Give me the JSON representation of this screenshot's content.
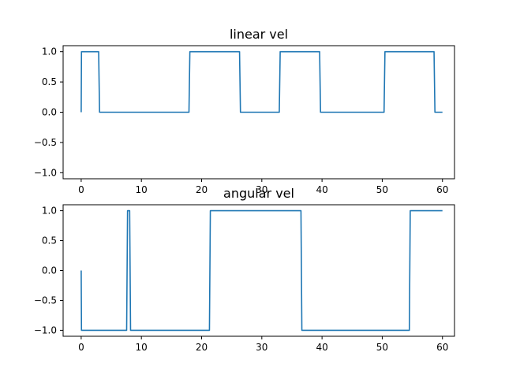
{
  "chart_data": [
    {
      "type": "line",
      "title": "linear vel",
      "xlabel": "",
      "ylabel": "",
      "xlim": [
        -3,
        62
      ],
      "ylim": [
        -1.1,
        1.1
      ],
      "xticks": [
        0,
        10,
        20,
        30,
        40,
        50,
        60
      ],
      "yticks": [
        -1.0,
        -0.5,
        0.0,
        0.5,
        1.0
      ],
      "xtick_labels": [
        "0",
        "10",
        "20",
        "30",
        "40",
        "50",
        "60"
      ],
      "ytick_labels": [
        "−1.0",
        "−0.5",
        "0.0",
        "0.5",
        "1.0"
      ],
      "grid": false,
      "color": "#1f77b4",
      "series": [
        {
          "x": [
            0,
            0.05,
            2.9,
            3.05,
            17.9,
            18.05,
            26.3,
            26.45,
            32.9,
            33.05,
            39.6,
            39.75,
            50.3,
            50.45,
            58.6,
            58.75,
            60
          ],
          "values": [
            0,
            1,
            1,
            0,
            0,
            1,
            1,
            0,
            0,
            1,
            1,
            0,
            0,
            1,
            1,
            0,
            0
          ]
        }
      ]
    },
    {
      "type": "line",
      "title": "angular vel",
      "xlabel": "",
      "ylabel": "",
      "xlim": [
        -3,
        62
      ],
      "ylim": [
        -1.1,
        1.1
      ],
      "xticks": [
        0,
        10,
        20,
        30,
        40,
        50,
        60
      ],
      "yticks": [
        -1.0,
        -0.5,
        0.0,
        0.5,
        1.0
      ],
      "xtick_labels": [
        "0",
        "10",
        "20",
        "30",
        "40",
        "50",
        "60"
      ],
      "ytick_labels": [
        "−1.0",
        "−0.5",
        "0.0",
        "0.5",
        "1.0"
      ],
      "grid": false,
      "color": "#1f77b4",
      "series": [
        {
          "x": [
            0,
            0.05,
            7.55,
            7.7,
            8.05,
            8.2,
            21.3,
            21.45,
            36.5,
            36.65,
            54.5,
            54.65,
            60
          ],
          "values": [
            0,
            -1,
            -1,
            1,
            1,
            -1,
            -1,
            1,
            1,
            -1,
            -1,
            1,
            1
          ]
        }
      ]
    }
  ]
}
